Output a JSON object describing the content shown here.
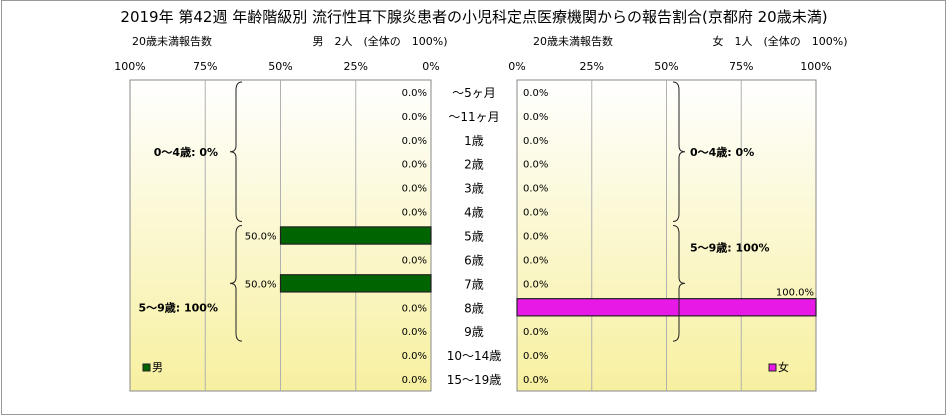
{
  "chart_data": {
    "type": "bar",
    "title": "2019年 第42週 年齢階級別 流行性耳下腺炎患者の小児科定点医療機関からの報告割合(京都府 20歳未満)",
    "categories": [
      "～5ヶ月",
      "～11ヶ月",
      "1歳",
      "2歳",
      "3歳",
      "4歳",
      "5歳",
      "6歳",
      "7歳",
      "8歳",
      "9歳",
      "10～14歳",
      "15～19歳"
    ],
    "xlim": [
      0,
      100
    ],
    "ticks": [
      "100%",
      "75%",
      "50%",
      "25%",
      "0%"
    ],
    "ticks_right": [
      "0%",
      "25%",
      "50%",
      "75%",
      "100%"
    ],
    "grid": true,
    "series": [
      {
        "name": "男",
        "side": "left",
        "color": "#006400",
        "header_count": "20歳未満報告数",
        "header_total": "男　2人　(全体の　100%)",
        "values": [
          0.0,
          0.0,
          0.0,
          0.0,
          0.0,
          0.0,
          50.0,
          0.0,
          50.0,
          0.0,
          0.0,
          0.0,
          0.0
        ],
        "labels": [
          "0.0%",
          "0.0%",
          "0.0%",
          "0.0%",
          "0.0%",
          "0.0%",
          "50.0%",
          "0.0%",
          "50.0%",
          "0.0%",
          "0.0%",
          "0.0%",
          "0.0%"
        ],
        "groups": [
          {
            "label": "0～4歳: 0%",
            "from": 0,
            "to": 5
          },
          {
            "label": "5～9歳: 100%",
            "from": 6,
            "to": 10
          }
        ]
      },
      {
        "name": "女",
        "side": "right",
        "color": "#e619e6",
        "header_count": "20歳未満報告数",
        "header_total": "女　1人　(全体の　100%)",
        "values": [
          0.0,
          0.0,
          0.0,
          0.0,
          0.0,
          0.0,
          0.0,
          0.0,
          0.0,
          100.0,
          0.0,
          0.0,
          0.0
        ],
        "labels": [
          "0.0%",
          "0.0%",
          "0.0%",
          "0.0%",
          "0.0%",
          "0.0%",
          "0.0%",
          "0.0%",
          "0.0%",
          "100.0%",
          "0.0%",
          "0.0%",
          "0.0%"
        ],
        "groups": [
          {
            "label": "0～4歳: 0%",
            "from": 0,
            "to": 5
          },
          {
            "label": "5～9歳: 100%",
            "from": 6,
            "to": 10
          }
        ]
      }
    ]
  }
}
